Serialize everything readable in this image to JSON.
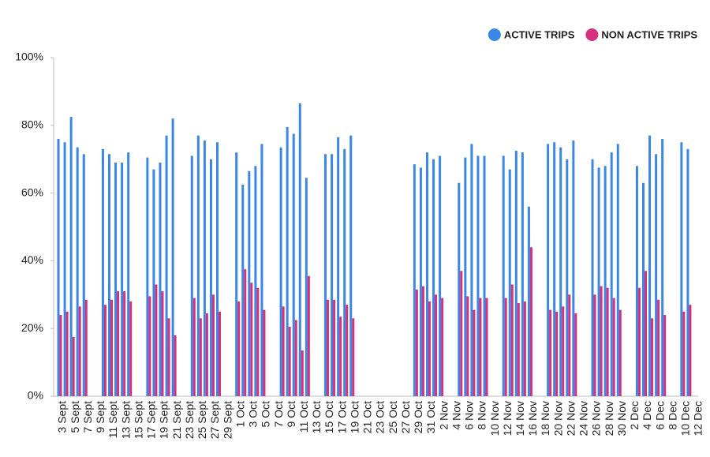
{
  "chart_data": {
    "type": "bar",
    "categories": [
      "3 Sept",
      null,
      "5 Sept",
      null,
      "7 Sept",
      null,
      "9 Sept",
      null,
      "11 Sept",
      null,
      "13 Sept",
      null,
      "15 Sept",
      null,
      "17 Sept",
      null,
      "19 Sept",
      null,
      "21 Sept",
      null,
      "23 Sept",
      null,
      "25 Sept",
      null,
      "27 Sept",
      null,
      "29 Sept",
      null,
      "1 Oct",
      null,
      "3 Oct",
      null,
      "5 Oct",
      null,
      "7 Oct",
      null,
      "9 Oct",
      null,
      "11 Oct",
      null,
      "13 Oct",
      null,
      "15 Oct",
      null,
      "17 Oct",
      null,
      "19 Oct",
      null,
      "21 Oct",
      null,
      "23 Oct",
      null,
      "25 Oct",
      null,
      "27 Oct",
      null,
      "29 Oct",
      null,
      "31 Oct",
      null,
      "2 Nov",
      null,
      "4 Nov",
      null,
      "6 Nov",
      null,
      "8 Nov",
      null,
      "10 Nov",
      null,
      "12 Nov",
      null,
      "14 Nov",
      null,
      "16 Nov",
      null,
      "18 Nov",
      null,
      "20 Nov",
      null,
      "22 Nov",
      null,
      "24 Nov",
      null,
      "26 Nov",
      null,
      "28 Nov",
      null,
      "30 Nov",
      null,
      "2 Dec",
      null,
      "4 Dec",
      null,
      "6 Dec",
      null,
      "8 Dec",
      null,
      "10 Dec",
      null,
      "12 Dec"
    ],
    "series": [
      {
        "name": "ACTIVE TRIPS",
        "color": "#3b87e6",
        "values": [
          76,
          75,
          82.5,
          73.5,
          71.5,
          null,
          null,
          73,
          71.5,
          69,
          69,
          72,
          null,
          null,
          70.5,
          67,
          69,
          77,
          82,
          null,
          null,
          71,
          77,
          75.5,
          70,
          75,
          null,
          null,
          72,
          62.5,
          66.5,
          68,
          74.5,
          null,
          null,
          73.5,
          79.5,
          77.5,
          86.5,
          64.5,
          null,
          null,
          71.5,
          71.5,
          76.5,
          73,
          77,
          null,
          null,
          null,
          null,
          null,
          null,
          null,
          null,
          null,
          68.5,
          67.5,
          72,
          70,
          71,
          null,
          null,
          63,
          70.5,
          74.5,
          71,
          71,
          null,
          null,
          71,
          67,
          72.5,
          72,
          56,
          null,
          null,
          74.5,
          75,
          73.5,
          70,
          75.5,
          null,
          null,
          70,
          67.5,
          68,
          72,
          74.5,
          null,
          null,
          68,
          63,
          77,
          71.5,
          76,
          null,
          null,
          75,
          73,
          null
        ]
      },
      {
        "name": "NON ACTIVE TRIPS",
        "color": "#d6317e",
        "values": [
          24,
          25,
          17.5,
          26.5,
          28.5,
          null,
          null,
          27,
          28.5,
          31,
          31,
          28,
          null,
          null,
          29.5,
          33,
          31,
          23,
          18,
          null,
          null,
          29,
          23,
          24.5,
          30,
          25,
          null,
          null,
          28,
          37.5,
          33.5,
          32,
          25.5,
          null,
          null,
          26.5,
          20.5,
          22.5,
          13.5,
          35.5,
          null,
          null,
          28.5,
          28.5,
          23.5,
          27,
          23,
          null,
          null,
          null,
          null,
          null,
          null,
          null,
          null,
          null,
          31.5,
          32.5,
          28,
          30,
          29,
          null,
          null,
          37,
          29.5,
          25.5,
          29,
          29,
          null,
          null,
          29,
          33,
          27.5,
          28,
          44,
          null,
          null,
          25.5,
          25,
          26.5,
          30,
          24.5,
          null,
          null,
          30,
          32.5,
          32,
          29,
          25.5,
          null,
          null,
          32,
          37,
          23,
          28.5,
          24,
          null,
          null,
          25,
          27,
          null
        ]
      }
    ],
    "ylim": [
      0,
      100
    ],
    "yticks": [
      {
        "value": 0,
        "label": "0%"
      },
      {
        "value": 20,
        "label": "20%"
      },
      {
        "value": 40,
        "label": "40%"
      },
      {
        "value": 60,
        "label": "60%"
      },
      {
        "value": 80,
        "label": "80%"
      },
      {
        "value": 100,
        "label": "100%"
      }
    ],
    "legend": "top-right"
  }
}
